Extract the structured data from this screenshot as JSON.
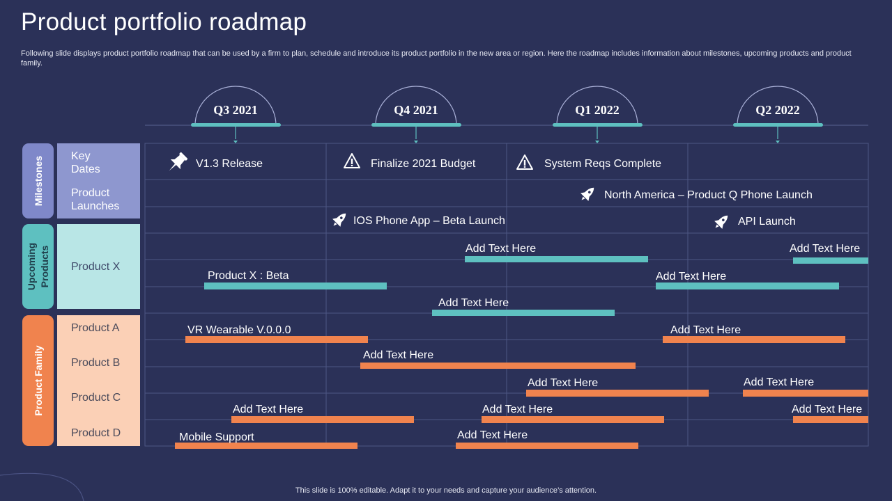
{
  "header": {
    "title": "Product portfolio roadmap",
    "description": "Following slide displays product portfolio roadmap that can be used by a firm to plan, schedule and introduce its  product portfolio in the new area or region. Here the roadmap includes information about milestones, upcoming products and product family."
  },
  "footer": {
    "text": "This slide is 100% editable. Adapt it to your needs and capture your audience’s attention."
  },
  "quarters": [
    {
      "label": "Q3 2021"
    },
    {
      "label": "Q4 2021"
    },
    {
      "label": "Q1 2022"
    },
    {
      "label": "Q2 2022"
    }
  ],
  "groups": [
    {
      "label": "Milestones",
      "color": "#7f88c9"
    },
    {
      "label": "Upcoming Products",
      "color": "#5ec0c0"
    },
    {
      "label": "Product Family",
      "color": "#f0834e"
    }
  ],
  "row_labels": {
    "key_dates": "Key Dates",
    "product_launches": "Product Launches",
    "product_x": "Product X",
    "product_a": "Product A",
    "product_b": "Product B",
    "product_c": "Product C",
    "product_d": "Product D"
  },
  "milestones": [
    {
      "icon": "pin-icon",
      "label": "V1.3 Release"
    },
    {
      "icon": "warning-icon",
      "label": "Finalize 2021 Budget"
    },
    {
      "icon": "warning-icon",
      "label": "System Reqs Complete"
    },
    {
      "icon": "rocket-icon",
      "label": "North America – Product Q Phone Launch"
    },
    {
      "icon": "rocket-icon",
      "label": "IOS Phone App – Beta Launch"
    },
    {
      "icon": "rocket-icon",
      "label": "API Launch"
    }
  ],
  "bars": [
    {
      "label": "Add Text Here",
      "color": "teal"
    },
    {
      "label": "Add Text Here",
      "color": "teal"
    },
    {
      "label": "Product X : Beta",
      "color": "teal"
    },
    {
      "label": "Add Text Here",
      "color": "teal"
    },
    {
      "label": "Add Text Here",
      "color": "teal"
    },
    {
      "label": "VR Wearable V.0.0.0",
      "color": "orange"
    },
    {
      "label": "Add Text Here",
      "color": "orange"
    },
    {
      "label": "Add Text Here",
      "color": "orange"
    },
    {
      "label": "Add Text Here",
      "color": "orange"
    },
    {
      "label": "Add Text Here",
      "color": "orange"
    },
    {
      "label": "Add Text Here",
      "color": "orange"
    },
    {
      "label": "Add Text Here",
      "color": "orange"
    },
    {
      "label": "Add Text Here",
      "color": "orange"
    },
    {
      "label": "Mobile Support",
      "color": "orange"
    },
    {
      "label": "Add Text Here",
      "color": "orange"
    }
  ],
  "colors": {
    "background": "#2b3158",
    "teal": "#5ec0c0",
    "orange": "#f0834e",
    "milestone_box": "#8e97cf",
    "upcoming_box": "#b9e6e6",
    "family_box": "#fbd0b6",
    "grid": "#4e5684"
  }
}
